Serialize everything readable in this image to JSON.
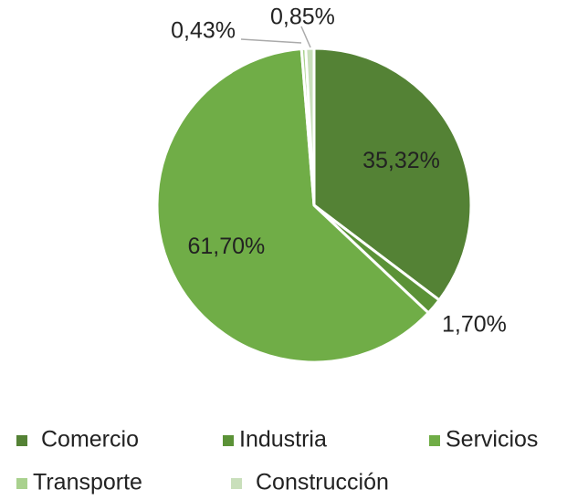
{
  "chart_data": {
    "type": "pie",
    "categories": [
      "Comercio",
      "Industria",
      "Servicios",
      "Transporte",
      "Construcción"
    ],
    "values": [
      35.32,
      1.7,
      61.7,
      0.43,
      0.85
    ],
    "value_labels": [
      "35,32%",
      "1,70%",
      "61,70%",
      "0,43%",
      "0,85%"
    ],
    "colors": [
      "#548235",
      "#5b9237",
      "#70ad47",
      "#a9d18e",
      "#c9dfbb"
    ],
    "legend": "bottom"
  }
}
